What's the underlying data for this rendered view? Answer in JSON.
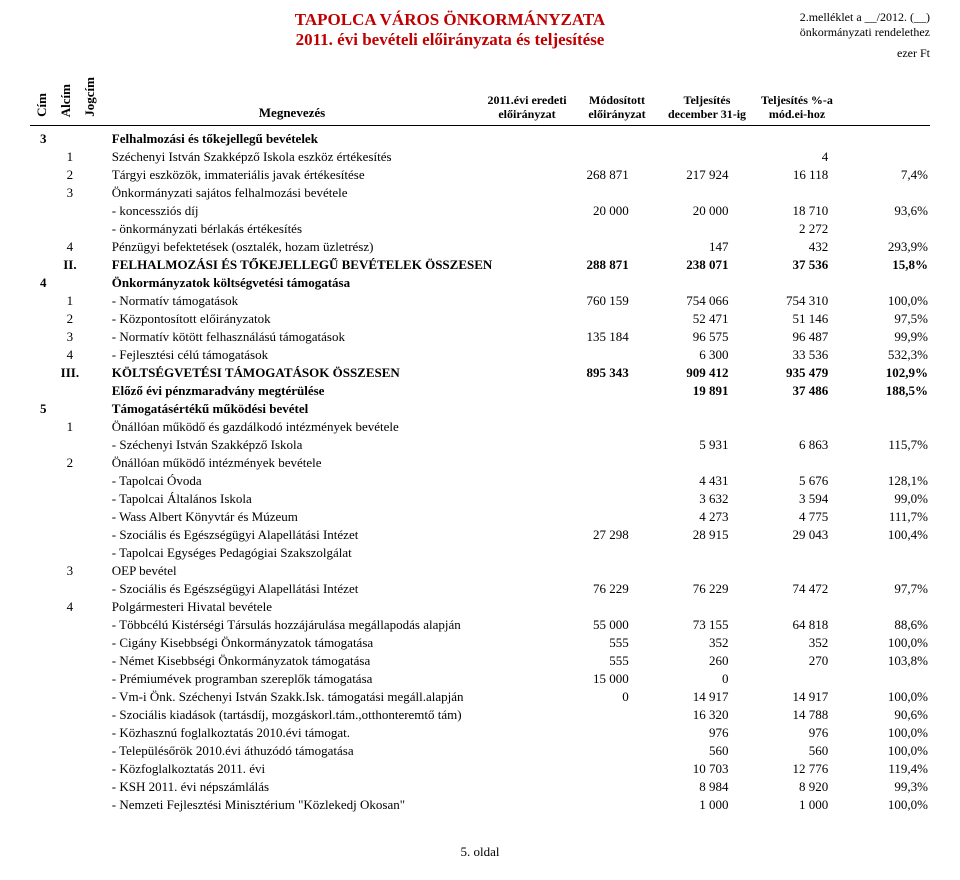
{
  "header": {
    "org": "TAPOLCA VÁROS ÖNKORMÁNYZATA",
    "sub": "2011. évi bevételi előirányzata és teljesítése",
    "right1": "2.melléklet a __/2012. (__)",
    "right2": "önkormányzati rendelethez",
    "unit": "ezer Ft"
  },
  "colhead": {
    "cim": "Cím",
    "alcim": "Alcím",
    "jogcim": "Jogcím",
    "megnev": "Megnevezés",
    "c1": "2011.évi eredeti előirányzat",
    "c2": "Módosított előirányzat",
    "c3": "Teljesítés december 31-ig",
    "c4": "Teljesítés %-a mód.ei-hoz"
  },
  "rows": [
    {
      "cim": "3",
      "alcim": "",
      "jog": "",
      "name": "Felhalmozási és tőkejellegű bevételek",
      "n1": "",
      "n2": "",
      "n3": "",
      "pct": "",
      "bold": true
    },
    {
      "cim": "",
      "alcim": "1",
      "jog": "",
      "name": "Széchenyi István Szakképző Iskola eszköz értékesítés",
      "n1": "",
      "n2": "",
      "n3": "4",
      "pct": ""
    },
    {
      "cim": "",
      "alcim": "2",
      "jog": "",
      "name": "Tárgyi eszközök, immateriális javak értékesítése",
      "n1": "268 871",
      "n2": "217 924",
      "n3": "16 118",
      "pct": "7,4%"
    },
    {
      "cim": "",
      "alcim": "3",
      "jog": "",
      "name": "Önkormányzati sajátos felhalmozási bevétele",
      "n1": "",
      "n2": "",
      "n3": "",
      "pct": ""
    },
    {
      "cim": "",
      "alcim": "",
      "jog": "",
      "name": "- koncessziós díj",
      "indent": 1,
      "n1": "20 000",
      "n2": "20 000",
      "n3": "18 710",
      "pct": "93,6%"
    },
    {
      "cim": "",
      "alcim": "",
      "jog": "",
      "name": "- önkormányzati bérlakás értékesítés",
      "indent": 1,
      "n1": "",
      "n2": "",
      "n3": "2 272",
      "pct": ""
    },
    {
      "cim": "",
      "alcim": "4",
      "jog": "",
      "name": "Pénzügyi befektetések (osztalék, hozam üzletrész)",
      "n1": "",
      "n2": "147",
      "n3": "432",
      "pct": "293,9%"
    },
    {
      "cim": "",
      "alcim": "II.",
      "jog": "",
      "name": "FELHALMOZÁSI ÉS TŐKEJELLEGŰ BEVÉTELEK ÖSSZESEN",
      "n1": "288 871",
      "n2": "238 071",
      "n3": "37 536",
      "pct": "15,8%",
      "bold": true
    },
    {
      "cim": "4",
      "alcim": "",
      "jog": "",
      "name": "Önkormányzatok költségvetési támogatása",
      "n1": "",
      "n2": "",
      "n3": "",
      "pct": "",
      "bold": true
    },
    {
      "cim": "",
      "alcim": "1",
      "jog": "",
      "name": "- Normatív támogatások",
      "n1": "760 159",
      "n2": "754 066",
      "n3": "754 310",
      "pct": "100,0%"
    },
    {
      "cim": "",
      "alcim": "2",
      "jog": "",
      "name": "- Központosított előirányzatok",
      "n1": "",
      "n2": "52 471",
      "n3": "51 146",
      "pct": "97,5%"
    },
    {
      "cim": "",
      "alcim": "3",
      "jog": "",
      "name": "- Normatív kötött felhasználású támogatások",
      "n1": "135 184",
      "n2": "96 575",
      "n3": "96 487",
      "pct": "99,9%"
    },
    {
      "cim": "",
      "alcim": "4",
      "jog": "",
      "name": "- Fejlesztési célú támogatások",
      "n1": "",
      "n2": "6 300",
      "n3": "33 536",
      "pct": "532,3%"
    },
    {
      "cim": "",
      "alcim": "III.",
      "jog": "",
      "name": "KÖLTSÉGVETÉSI TÁMOGATÁSOK ÖSSZESEN",
      "n1": "895 343",
      "n2": "909 412",
      "n3": "935 479",
      "pct": "102,9%",
      "bold": true
    },
    {
      "cim": "",
      "alcim": "",
      "jog": "",
      "name": "Előző évi pénzmaradvány megtérülése",
      "n1": "",
      "n2": "19 891",
      "n3": "37 486",
      "pct": "188,5%",
      "bold": true
    },
    {
      "cim": "5",
      "alcim": "",
      "jog": "",
      "name": "Támogatásértékű működési bevétel",
      "n1": "",
      "n2": "",
      "n3": "",
      "pct": "",
      "bold": true
    },
    {
      "cim": "",
      "alcim": "1",
      "jog": "",
      "name": "Önállóan működő és gazdálkodó  intézmények bevétele",
      "n1": "",
      "n2": "",
      "n3": "",
      "pct": ""
    },
    {
      "cim": "",
      "alcim": "",
      "jog": "",
      "name": "- Széchenyi István Szakképző Iskola",
      "indent": 1,
      "n1": "",
      "n2": "5 931",
      "n3": "6 863",
      "pct": "115,7%"
    },
    {
      "cim": "",
      "alcim": "2",
      "jog": "",
      "name": "Önállóan működő intézmények bevétele",
      "n1": "",
      "n2": "",
      "n3": "",
      "pct": ""
    },
    {
      "cim": "",
      "alcim": "",
      "jog": "",
      "name": "- Tapolcai Óvoda",
      "indent": 1,
      "n1": "",
      "n2": "4 431",
      "n3": "5 676",
      "pct": "128,1%"
    },
    {
      "cim": "",
      "alcim": "",
      "jog": "",
      "name": "- Tapolcai Általános Iskola",
      "indent": 1,
      "n1": "",
      "n2": "3 632",
      "n3": "3 594",
      "pct": "99,0%"
    },
    {
      "cim": "",
      "alcim": "",
      "jog": "",
      "name": "- Wass Albert Könyvtár és Múzeum",
      "indent": 1,
      "n1": "",
      "n2": "4 273",
      "n3": "4 775",
      "pct": "111,7%"
    },
    {
      "cim": "",
      "alcim": "",
      "jog": "",
      "name": "- Szociális és Egészségügyi Alapellátási Intézet",
      "indent": 1,
      "n1": "27 298",
      "n2": "28 915",
      "n3": "29 043",
      "pct": "100,4%"
    },
    {
      "cim": "",
      "alcim": "",
      "jog": "",
      "name": "- Tapolcai Egységes Pedagógiai Szakszolgálat",
      "indent": 1,
      "n1": "",
      "n2": "",
      "n3": "",
      "pct": ""
    },
    {
      "cim": "",
      "alcim": "3",
      "jog": "",
      "name": "OEP bevétel",
      "n1": "",
      "n2": "",
      "n3": "",
      "pct": ""
    },
    {
      "cim": "",
      "alcim": "",
      "jog": "",
      "name": "- Szociális és Egészségügyi Alapellátási Intézet",
      "indent": 1,
      "n1": "76 229",
      "n2": "76 229",
      "n3": "74 472",
      "pct": "97,7%"
    },
    {
      "cim": "",
      "alcim": "4",
      "jog": "",
      "name": "Polgármesteri Hivatal bevétele",
      "n1": "",
      "n2": "",
      "n3": "",
      "pct": ""
    },
    {
      "cim": "",
      "alcim": "",
      "jog": "",
      "name": "- Többcélú Kistérségi Társulás hozzájárulása megállapodás alapján",
      "indent": 1,
      "n1": "55 000",
      "n2": "73 155",
      "n3": "64 818",
      "pct": "88,6%"
    },
    {
      "cim": "",
      "alcim": "",
      "jog": "",
      "name": "- Cigány Kisebbségi Önkormányzatok támogatása",
      "indent": 1,
      "n1": "555",
      "n2": "352",
      "n3": "352",
      "pct": "100,0%"
    },
    {
      "cim": "",
      "alcim": "",
      "jog": "",
      "name": "- Német Kisebbségi Önkormányzatok támogatása",
      "indent": 1,
      "n1": "555",
      "n2": "260",
      "n3": "270",
      "pct": "103,8%"
    },
    {
      "cim": "",
      "alcim": "",
      "jog": "",
      "name": "- Prémiumévek programban szereplők támogatása",
      "indent": 1,
      "n1": "15 000",
      "n2": "0",
      "n3": "",
      "pct": ""
    },
    {
      "cim": "",
      "alcim": "",
      "jog": "",
      "name": "- Vm-i Önk. Széchenyi István Szakk.Isk. támogatási megáll.alapján",
      "indent": 1,
      "n1": "0",
      "n2": "14 917",
      "n3": "14 917",
      "pct": "100,0%"
    },
    {
      "cim": "",
      "alcim": "",
      "jog": "",
      "name": "- Szociális kiadások (tartásdíj, mozgáskorl.tám.,otthonteremtő tám)",
      "indent": 1,
      "n1": "",
      "n2": "16 320",
      "n3": "14 788",
      "pct": "90,6%"
    },
    {
      "cim": "",
      "alcim": "",
      "jog": "",
      "name": "- Közhasznú foglalkoztatás 2010.évi támogat.",
      "indent": 1,
      "n1": "",
      "n2": "976",
      "n3": "976",
      "pct": "100,0%"
    },
    {
      "cim": "",
      "alcim": "",
      "jog": "",
      "name": "- Településőrök 2010.évi áthuzódó támogatása",
      "indent": 1,
      "n1": "",
      "n2": "560",
      "n3": "560",
      "pct": "100,0%"
    },
    {
      "cim": "",
      "alcim": "",
      "jog": "",
      "name": "- Közfoglalkoztatás 2011. évi",
      "indent": 1,
      "n1": "",
      "n2": "10 703",
      "n3": "12 776",
      "pct": "119,4%"
    },
    {
      "cim": "",
      "alcim": "",
      "jog": "",
      "name": "- KSH 2011. évi népszámlálás",
      "indent": 1,
      "n1": "",
      "n2": "8 984",
      "n3": "8 920",
      "pct": "99,3%"
    },
    {
      "cim": "",
      "alcim": "",
      "jog": "",
      "name": "- Nemzeti Fejlesztési Minisztérium \"Közlekedj Okosan\"",
      "indent": 1,
      "n1": "",
      "n2": "1 000",
      "n3": "1 000",
      "pct": "100,0%"
    }
  ],
  "footer": "5. oldal"
}
